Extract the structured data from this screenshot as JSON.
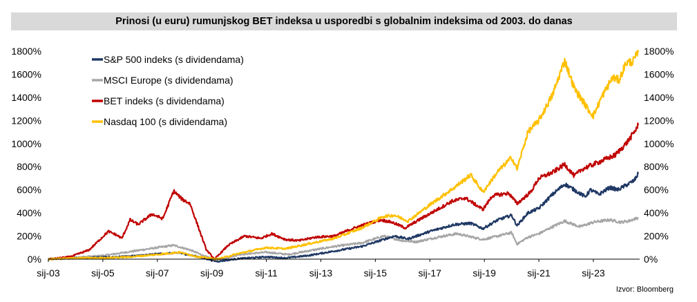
{
  "chart_data": {
    "type": "line",
    "title": "Prinosi (u euru) rumunjskog BET indeksa u usporedbi s globalnim indeksima od 2003. do danas",
    "source": "Izvor: Bloomberg",
    "x_range": [
      2003.0,
      2024.7
    ],
    "ylim": [
      0,
      1800
    ],
    "y_ticks": [
      0,
      200,
      400,
      600,
      800,
      1000,
      1200,
      1400,
      1600,
      1800
    ],
    "y_tick_labels": [
      "0%",
      "200%",
      "400%",
      "600%",
      "800%",
      "1000%",
      "1200%",
      "1400%",
      "1600%",
      "1800%"
    ],
    "x_ticks": [
      2003,
      2005,
      2007,
      2009,
      2011,
      2013,
      2015,
      2017,
      2019,
      2021,
      2023
    ],
    "x_tick_labels": [
      "sij-03",
      "sij-05",
      "sij-07",
      "sij-09",
      "sij-11",
      "sij-13",
      "sij-15",
      "sij-17",
      "sij-19",
      "sij-21",
      "sij-23"
    ],
    "legend_position": "top-left",
    "grid": false,
    "series": [
      {
        "name": "S&P 500 indeks (s dividendama)",
        "color": "#1f3864",
        "points": [
          [
            2003.0,
            0
          ],
          [
            2004.0,
            10
          ],
          [
            2005.0,
            15
          ],
          [
            2006.0,
            25
          ],
          [
            2007.0,
            45
          ],
          [
            2007.8,
            55
          ],
          [
            2008.5,
            20
          ],
          [
            2009.2,
            -20
          ],
          [
            2010.0,
            5
          ],
          [
            2011.0,
            20
          ],
          [
            2011.7,
            10
          ],
          [
            2012.5,
            30
          ],
          [
            2013.5,
            70
          ],
          [
            2014.5,
            110
          ],
          [
            2015.3,
            170
          ],
          [
            2015.7,
            200
          ],
          [
            2016.2,
            175
          ],
          [
            2017.0,
            240
          ],
          [
            2017.9,
            300
          ],
          [
            2018.5,
            310
          ],
          [
            2018.95,
            265
          ],
          [
            2019.5,
            340
          ],
          [
            2020.0,
            380
          ],
          [
            2020.2,
            290
          ],
          [
            2020.6,
            400
          ],
          [
            2021.0,
            440
          ],
          [
            2021.5,
            560
          ],
          [
            2021.95,
            650
          ],
          [
            2022.3,
            600
          ],
          [
            2022.7,
            540
          ],
          [
            2022.9,
            600
          ],
          [
            2023.2,
            560
          ],
          [
            2023.6,
            620
          ],
          [
            2023.9,
            600
          ],
          [
            2024.2,
            640
          ],
          [
            2024.5,
            680
          ],
          [
            2024.65,
            740
          ]
        ]
      },
      {
        "name": "MSCI Europe (s dividendama)",
        "color": "#a6a6a6",
        "points": [
          [
            2003.0,
            0
          ],
          [
            2004.0,
            15
          ],
          [
            2005.0,
            30
          ],
          [
            2006.0,
            65
          ],
          [
            2007.0,
            100
          ],
          [
            2007.6,
            120
          ],
          [
            2008.2,
            80
          ],
          [
            2008.8,
            20
          ],
          [
            2009.2,
            -10
          ],
          [
            2010.0,
            40
          ],
          [
            2011.0,
            60
          ],
          [
            2011.8,
            40
          ],
          [
            2012.5,
            70
          ],
          [
            2013.5,
            110
          ],
          [
            2014.5,
            140
          ],
          [
            2015.3,
            200
          ],
          [
            2016.0,
            160
          ],
          [
            2016.5,
            150
          ],
          [
            2017.5,
            200
          ],
          [
            2018.0,
            220
          ],
          [
            2018.95,
            170
          ],
          [
            2019.5,
            200
          ],
          [
            2020.0,
            230
          ],
          [
            2020.2,
            130
          ],
          [
            2020.6,
            190
          ],
          [
            2021.0,
            220
          ],
          [
            2021.5,
            280
          ],
          [
            2021.95,
            330
          ],
          [
            2022.5,
            280
          ],
          [
            2023.0,
            320
          ],
          [
            2023.6,
            340
          ],
          [
            2024.0,
            320
          ],
          [
            2024.3,
            330
          ],
          [
            2024.65,
            360
          ]
        ]
      },
      {
        "name": "BET indeks (s dividendama)",
        "color": "#c00000",
        "points": [
          [
            2003.0,
            0
          ],
          [
            2003.8,
            20
          ],
          [
            2004.5,
            80
          ],
          [
            2005.2,
            240
          ],
          [
            2005.5,
            210
          ],
          [
            2005.7,
            180
          ],
          [
            2006.0,
            340
          ],
          [
            2006.3,
            300
          ],
          [
            2006.8,
            390
          ],
          [
            2007.2,
            350
          ],
          [
            2007.6,
            590
          ],
          [
            2007.9,
            520
          ],
          [
            2008.2,
            480
          ],
          [
            2008.5,
            280
          ],
          [
            2008.8,
            80
          ],
          [
            2009.1,
            0
          ],
          [
            2009.6,
            120
          ],
          [
            2010.2,
            200
          ],
          [
            2010.8,
            180
          ],
          [
            2011.2,
            220
          ],
          [
            2011.7,
            170
          ],
          [
            2012.2,
            160
          ],
          [
            2012.8,
            190
          ],
          [
            2013.5,
            200
          ],
          [
            2014.0,
            250
          ],
          [
            2014.6,
            300
          ],
          [
            2015.2,
            340
          ],
          [
            2015.6,
            320
          ],
          [
            2016.1,
            270
          ],
          [
            2016.6,
            340
          ],
          [
            2017.2,
            420
          ],
          [
            2017.8,
            500
          ],
          [
            2018.3,
            530
          ],
          [
            2018.95,
            430
          ],
          [
            2019.3,
            550
          ],
          [
            2019.9,
            570
          ],
          [
            2020.2,
            480
          ],
          [
            2020.7,
            580
          ],
          [
            2021.0,
            700
          ],
          [
            2021.5,
            750
          ],
          [
            2021.95,
            820
          ],
          [
            2022.3,
            720
          ],
          [
            2022.6,
            780
          ],
          [
            2022.9,
            810
          ],
          [
            2023.3,
            850
          ],
          [
            2023.8,
            900
          ],
          [
            2024.2,
            1000
          ],
          [
            2024.45,
            1080
          ],
          [
            2024.65,
            1160
          ]
        ]
      },
      {
        "name": "Nasdaq 100 (s dividendama)",
        "color": "#ffc000",
        "points": [
          [
            2003.0,
            0
          ],
          [
            2004.0,
            10
          ],
          [
            2005.0,
            10
          ],
          [
            2006.0,
            20
          ],
          [
            2007.0,
            40
          ],
          [
            2007.8,
            60
          ],
          [
            2008.5,
            20
          ],
          [
            2009.2,
            0
          ],
          [
            2010.0,
            50
          ],
          [
            2011.0,
            100
          ],
          [
            2011.7,
            90
          ],
          [
            2012.5,
            130
          ],
          [
            2013.5,
            180
          ],
          [
            2014.5,
            270
          ],
          [
            2015.3,
            370
          ],
          [
            2015.7,
            380
          ],
          [
            2016.2,
            330
          ],
          [
            2017.0,
            470
          ],
          [
            2017.9,
            620
          ],
          [
            2018.5,
            730
          ],
          [
            2018.95,
            580
          ],
          [
            2019.5,
            760
          ],
          [
            2020.0,
            880
          ],
          [
            2020.2,
            780
          ],
          [
            2020.6,
            1100
          ],
          [
            2021.0,
            1200
          ],
          [
            2021.5,
            1420
          ],
          [
            2021.95,
            1720
          ],
          [
            2022.3,
            1480
          ],
          [
            2022.8,
            1300
          ],
          [
            2023.0,
            1240
          ],
          [
            2023.3,
            1400
          ],
          [
            2023.7,
            1570
          ],
          [
            2023.95,
            1550
          ],
          [
            2024.2,
            1700
          ],
          [
            2024.45,
            1710
          ],
          [
            2024.65,
            1790
          ]
        ]
      }
    ]
  }
}
